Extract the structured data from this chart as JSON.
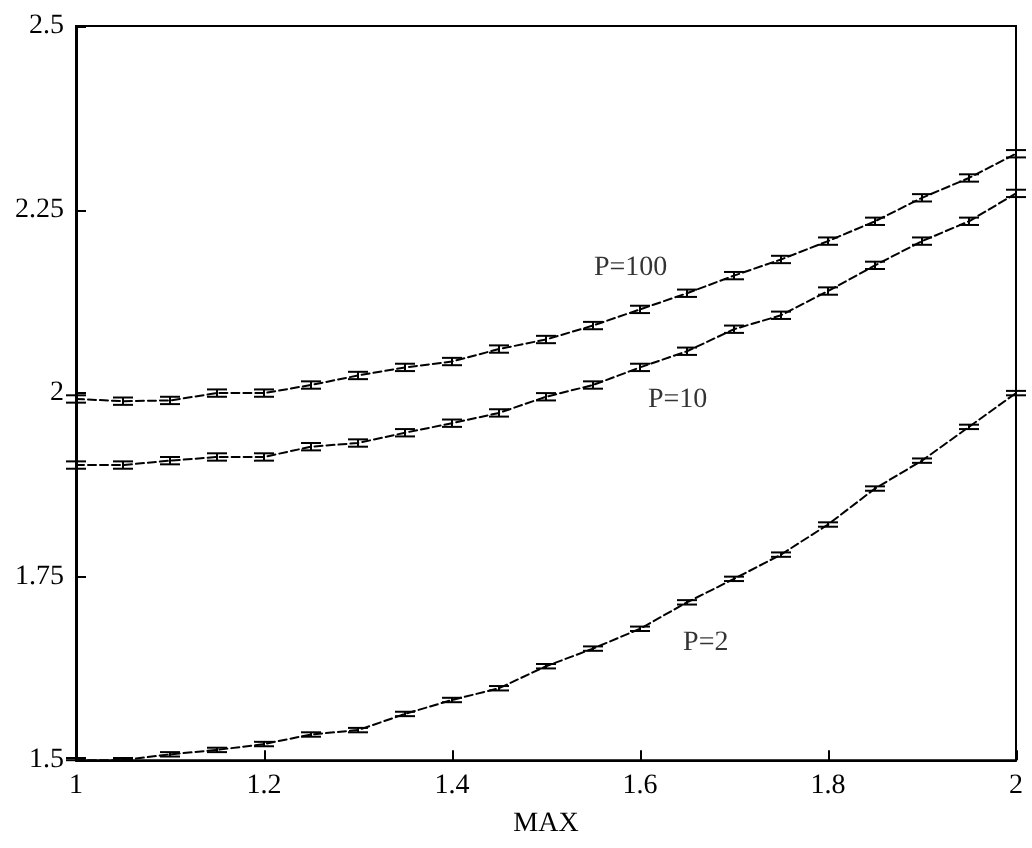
{
  "chart_data": {
    "type": "line",
    "xlabel": "MAX",
    "x": [
      1,
      1.05,
      1.1,
      1.15,
      1.2,
      1.25,
      1.3,
      1.35,
      1.4,
      1.45,
      1.5,
      1.55,
      1.6,
      1.65,
      1.7,
      1.75,
      1.8,
      1.85,
      1.9,
      1.95,
      2
    ],
    "series": [
      {
        "color": "#000000",
        "values": [
          1.992,
          1.989,
          1.99,
          2.0,
          2.0,
          2.011,
          2.024,
          2.035,
          2.043,
          2.06,
          2.073,
          2.092,
          2.114,
          2.136,
          2.16,
          2.182,
          2.207,
          2.234,
          2.266,
          2.293,
          2.326
        ],
        "errors": [
          0.005,
          0.005,
          0.005,
          0.005,
          0.005,
          0.005,
          0.005,
          0.005,
          0.005,
          0.005,
          0.005,
          0.005,
          0.005,
          0.005,
          0.005,
          0.005,
          0.005,
          0.005,
          0.005,
          0.005,
          0.005
        ]
      },
      {
        "color": "#000000",
        "values": [
          1.902,
          1.902,
          1.908,
          1.913,
          1.913,
          1.927,
          1.932,
          1.946,
          1.959,
          1.973,
          1.995,
          2.011,
          2.035,
          2.057,
          2.087,
          2.106,
          2.139,
          2.174,
          2.207,
          2.234,
          2.272
        ],
        "errors": [
          0.005,
          0.005,
          0.005,
          0.005,
          0.005,
          0.005,
          0.005,
          0.005,
          0.005,
          0.005,
          0.005,
          0.005,
          0.005,
          0.005,
          0.005,
          0.005,
          0.005,
          0.005,
          0.005,
          0.005,
          0.005
        ]
      },
      {
        "color": "#000000",
        "values": [
          1.5,
          1.5,
          1.508,
          1.514,
          1.522,
          1.535,
          1.541,
          1.563,
          1.582,
          1.598,
          1.628,
          1.652,
          1.679,
          1.715,
          1.747,
          1.78,
          1.821,
          1.87,
          1.908,
          1.954,
          2.0
        ],
        "errors": [
          [
            1.5,
            1.503
          ],
          [
            1.5,
            1.503
          ],
          0.003,
          0.003,
          0.003,
          0.003,
          0.003,
          0.003,
          0.003,
          0.003,
          0.003,
          0.003,
          0.003,
          0.003,
          0.003,
          0.003,
          0.003,
          0.003,
          0.003,
          0.003,
          0.003
        ]
      }
    ],
    "annotations": [
      "P=100",
      "P=10",
      "P=2"
    ],
    "xlim": [
      1,
      2
    ],
    "xticks": [
      1,
      1.2,
      1.4,
      1.6,
      1.8,
      2
    ],
    "ylim": [
      1.5,
      2.5
    ],
    "yticks": [
      1.5,
      1.75,
      2,
      2.25,
      2.5
    ],
    "grid": false,
    "marker": "none",
    "line_style": "dashed"
  }
}
